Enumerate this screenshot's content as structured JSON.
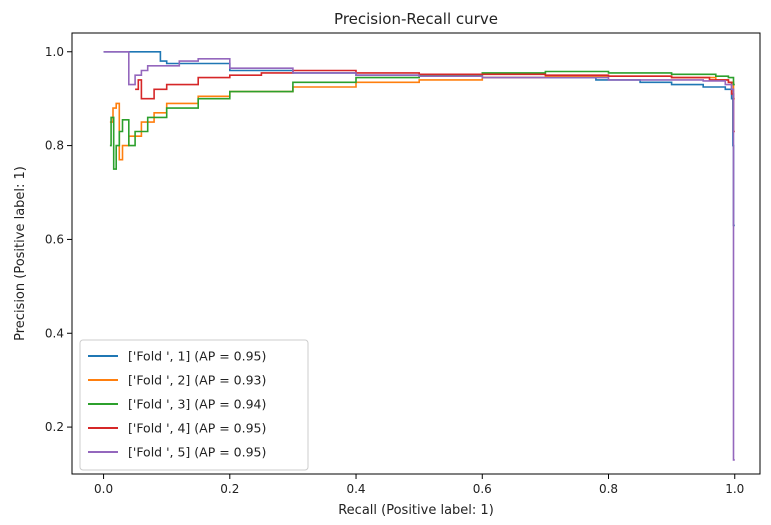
{
  "chart_data": {
    "type": "line",
    "title": "Precision-Recall curve",
    "xlabel": "Recall (Positive label: 1)",
    "ylabel": "Precision (Positive label: 1)",
    "xlim": [
      -0.05,
      1.04
    ],
    "ylim": [
      0.1,
      1.04
    ],
    "xticks": [
      "0.0",
      "0.2",
      "0.4",
      "0.6",
      "0.8",
      "1.0"
    ],
    "yticks": [
      "0.2",
      "0.4",
      "0.6",
      "0.8",
      "1.0"
    ],
    "grid": false,
    "legend_position": "lower-left",
    "series": [
      {
        "name": "['Fold ', 1] (AP = 0.95)",
        "color": "#1f77b4",
        "x": [
          0.0,
          0.09,
          0.09,
          0.1,
          0.2,
          0.3,
          0.4,
          0.5,
          0.6,
          0.7,
          0.78,
          0.85,
          0.9,
          0.95,
          0.985,
          0.995,
          0.997,
          0.998,
          1.0
        ],
        "y": [
          1.0,
          1.0,
          0.98,
          0.975,
          0.96,
          0.955,
          0.95,
          0.948,
          0.945,
          0.945,
          0.94,
          0.935,
          0.93,
          0.925,
          0.92,
          0.9,
          0.8,
          0.63,
          0.63
        ]
      },
      {
        "name": "['Fold ', 2] (AP = 0.93)",
        "color": "#ff7f0e",
        "x": [
          0.01,
          0.015,
          0.02,
          0.025,
          0.03,
          0.04,
          0.06,
          0.08,
          0.1,
          0.15,
          0.2,
          0.3,
          0.4,
          0.5,
          0.6,
          0.7,
          0.8,
          0.9,
          0.97,
          0.99,
          0.998,
          1.0
        ],
        "y": [
          0.85,
          0.88,
          0.89,
          0.77,
          0.8,
          0.82,
          0.85,
          0.87,
          0.89,
          0.905,
          0.915,
          0.925,
          0.935,
          0.94,
          0.945,
          0.948,
          0.948,
          0.945,
          0.94,
          0.935,
          0.9,
          0.9
        ]
      },
      {
        "name": "['Fold ', 3] (AP = 0.94)",
        "color": "#2ca02c",
        "x": [
          0.01,
          0.012,
          0.016,
          0.02,
          0.025,
          0.03,
          0.04,
          0.05,
          0.07,
          0.1,
          0.15,
          0.2,
          0.3,
          0.4,
          0.5,
          0.6,
          0.7,
          0.8,
          0.9,
          0.97,
          0.99,
          0.998,
          1.0
        ],
        "y": [
          0.8,
          0.86,
          0.75,
          0.8,
          0.83,
          0.855,
          0.8,
          0.83,
          0.86,
          0.88,
          0.9,
          0.915,
          0.935,
          0.945,
          0.95,
          0.955,
          0.958,
          0.955,
          0.952,
          0.948,
          0.945,
          0.93,
          0.93
        ]
      },
      {
        "name": "['Fold ', 4] (AP = 0.95)",
        "color": "#d62728",
        "x": [
          0.05,
          0.055,
          0.06,
          0.08,
          0.1,
          0.15,
          0.2,
          0.25,
          0.3,
          0.4,
          0.5,
          0.6,
          0.7,
          0.8,
          0.9,
          0.96,
          0.99,
          0.995,
          0.998,
          1.0
        ],
        "y": [
          0.92,
          0.94,
          0.9,
          0.92,
          0.93,
          0.945,
          0.95,
          0.955,
          0.96,
          0.955,
          0.952,
          0.952,
          0.95,
          0.948,
          0.945,
          0.94,
          0.935,
          0.91,
          0.83,
          0.83
        ]
      },
      {
        "name": "['Fold ', 5] (AP = 0.95)",
        "color": "#9467bd",
        "x": [
          0.0,
          0.04,
          0.04,
          0.05,
          0.06,
          0.07,
          0.1,
          0.12,
          0.15,
          0.2,
          0.3,
          0.4,
          0.5,
          0.6,
          0.7,
          0.8,
          0.9,
          0.95,
          0.985,
          0.995,
          0.998,
          1.0
        ],
        "y": [
          1.0,
          1.0,
          0.93,
          0.95,
          0.96,
          0.97,
          0.97,
          0.98,
          0.985,
          0.965,
          0.955,
          0.95,
          0.948,
          0.945,
          0.945,
          0.94,
          0.94,
          0.938,
          0.93,
          0.92,
          0.13,
          0.13
        ]
      }
    ]
  }
}
